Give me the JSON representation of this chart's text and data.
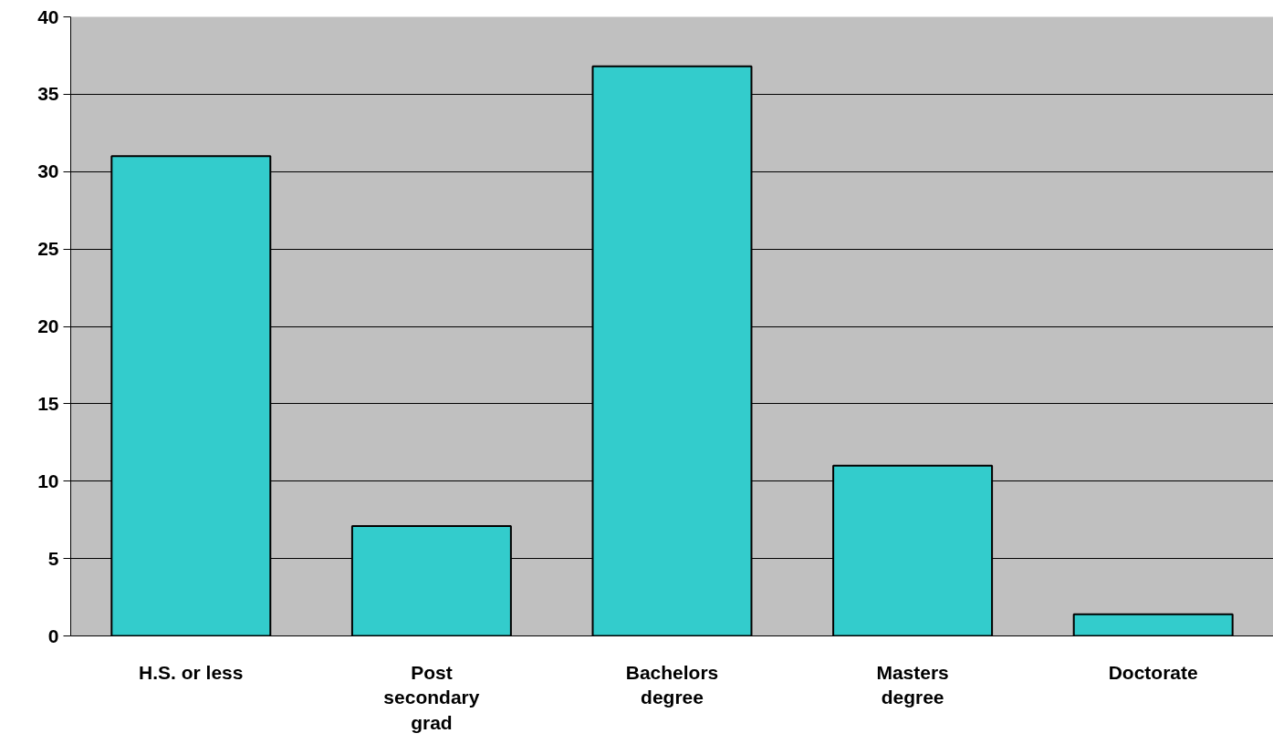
{
  "chart_data": {
    "type": "bar",
    "categories": [
      "H.S. or less",
      "Post secondary grad",
      "Bachelors degree",
      "Masters degree",
      "Doctorate"
    ],
    "values": [
      31,
      7.1,
      36.8,
      11,
      1.4
    ],
    "color": "#33cccc",
    "ylim": [
      0,
      40
    ],
    "yticks": [
      0,
      5,
      10,
      15,
      20,
      25,
      30,
      35,
      40
    ],
    "grid": "y"
  }
}
